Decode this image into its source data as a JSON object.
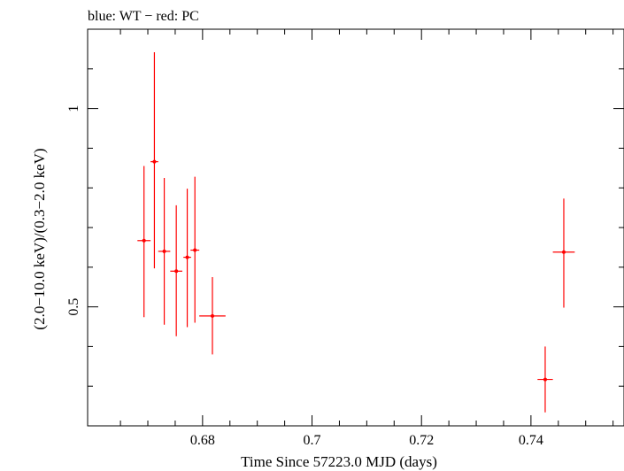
{
  "chart_data": {
    "type": "scatter",
    "title": "blue: WT − red: PC",
    "xlabel": "Time Since 57223.0 MJD (days)",
    "ylabel": "(2.0−10.0 keV)/(0.3−2.0 keV)",
    "xlim": [
      0.659,
      0.757
    ],
    "ylim": [
      0.2,
      1.2
    ],
    "x_ticks": [
      {
        "value": 0.68,
        "label": "0.68"
      },
      {
        "value": 0.7,
        "label": "0.7"
      },
      {
        "value": 0.72,
        "label": "0.72"
      },
      {
        "value": 0.74,
        "label": "0.74"
      }
    ],
    "y_ticks": [
      {
        "value": 0.5,
        "label": "0.5"
      },
      {
        "value": 1.0,
        "label": "1"
      }
    ],
    "series": [
      {
        "name": "PC",
        "color": "#ff0000",
        "points": [
          {
            "x": 0.6693,
            "y": 0.667,
            "xerr": 0.0012,
            "ylo": 0.474,
            "yhi": 0.855
          },
          {
            "x": 0.6712,
            "y": 0.866,
            "xerr": 0.0007,
            "ylo": 0.597,
            "yhi": 1.142
          },
          {
            "x": 0.673,
            "y": 0.64,
            "xerr": 0.0011,
            "ylo": 0.455,
            "yhi": 0.825
          },
          {
            "x": 0.6752,
            "y": 0.59,
            "xerr": 0.0011,
            "ylo": 0.426,
            "yhi": 0.756
          },
          {
            "x": 0.6772,
            "y": 0.625,
            "xerr": 0.0007,
            "ylo": 0.449,
            "yhi": 0.798
          },
          {
            "x": 0.6786,
            "y": 0.643,
            "xerr": 0.0008,
            "ylo": 0.46,
            "yhi": 0.828
          },
          {
            "x": 0.6818,
            "y": 0.477,
            "xerr": 0.0024,
            "ylo": 0.38,
            "yhi": 0.575
          },
          {
            "x": 0.7426,
            "y": 0.317,
            "xerr": 0.0014,
            "ylo": 0.234,
            "yhi": 0.4
          },
          {
            "x": 0.746,
            "y": 0.638,
            "xerr": 0.002,
            "ylo": 0.498,
            "yhi": 0.773
          }
        ]
      }
    ],
    "grid": false
  }
}
